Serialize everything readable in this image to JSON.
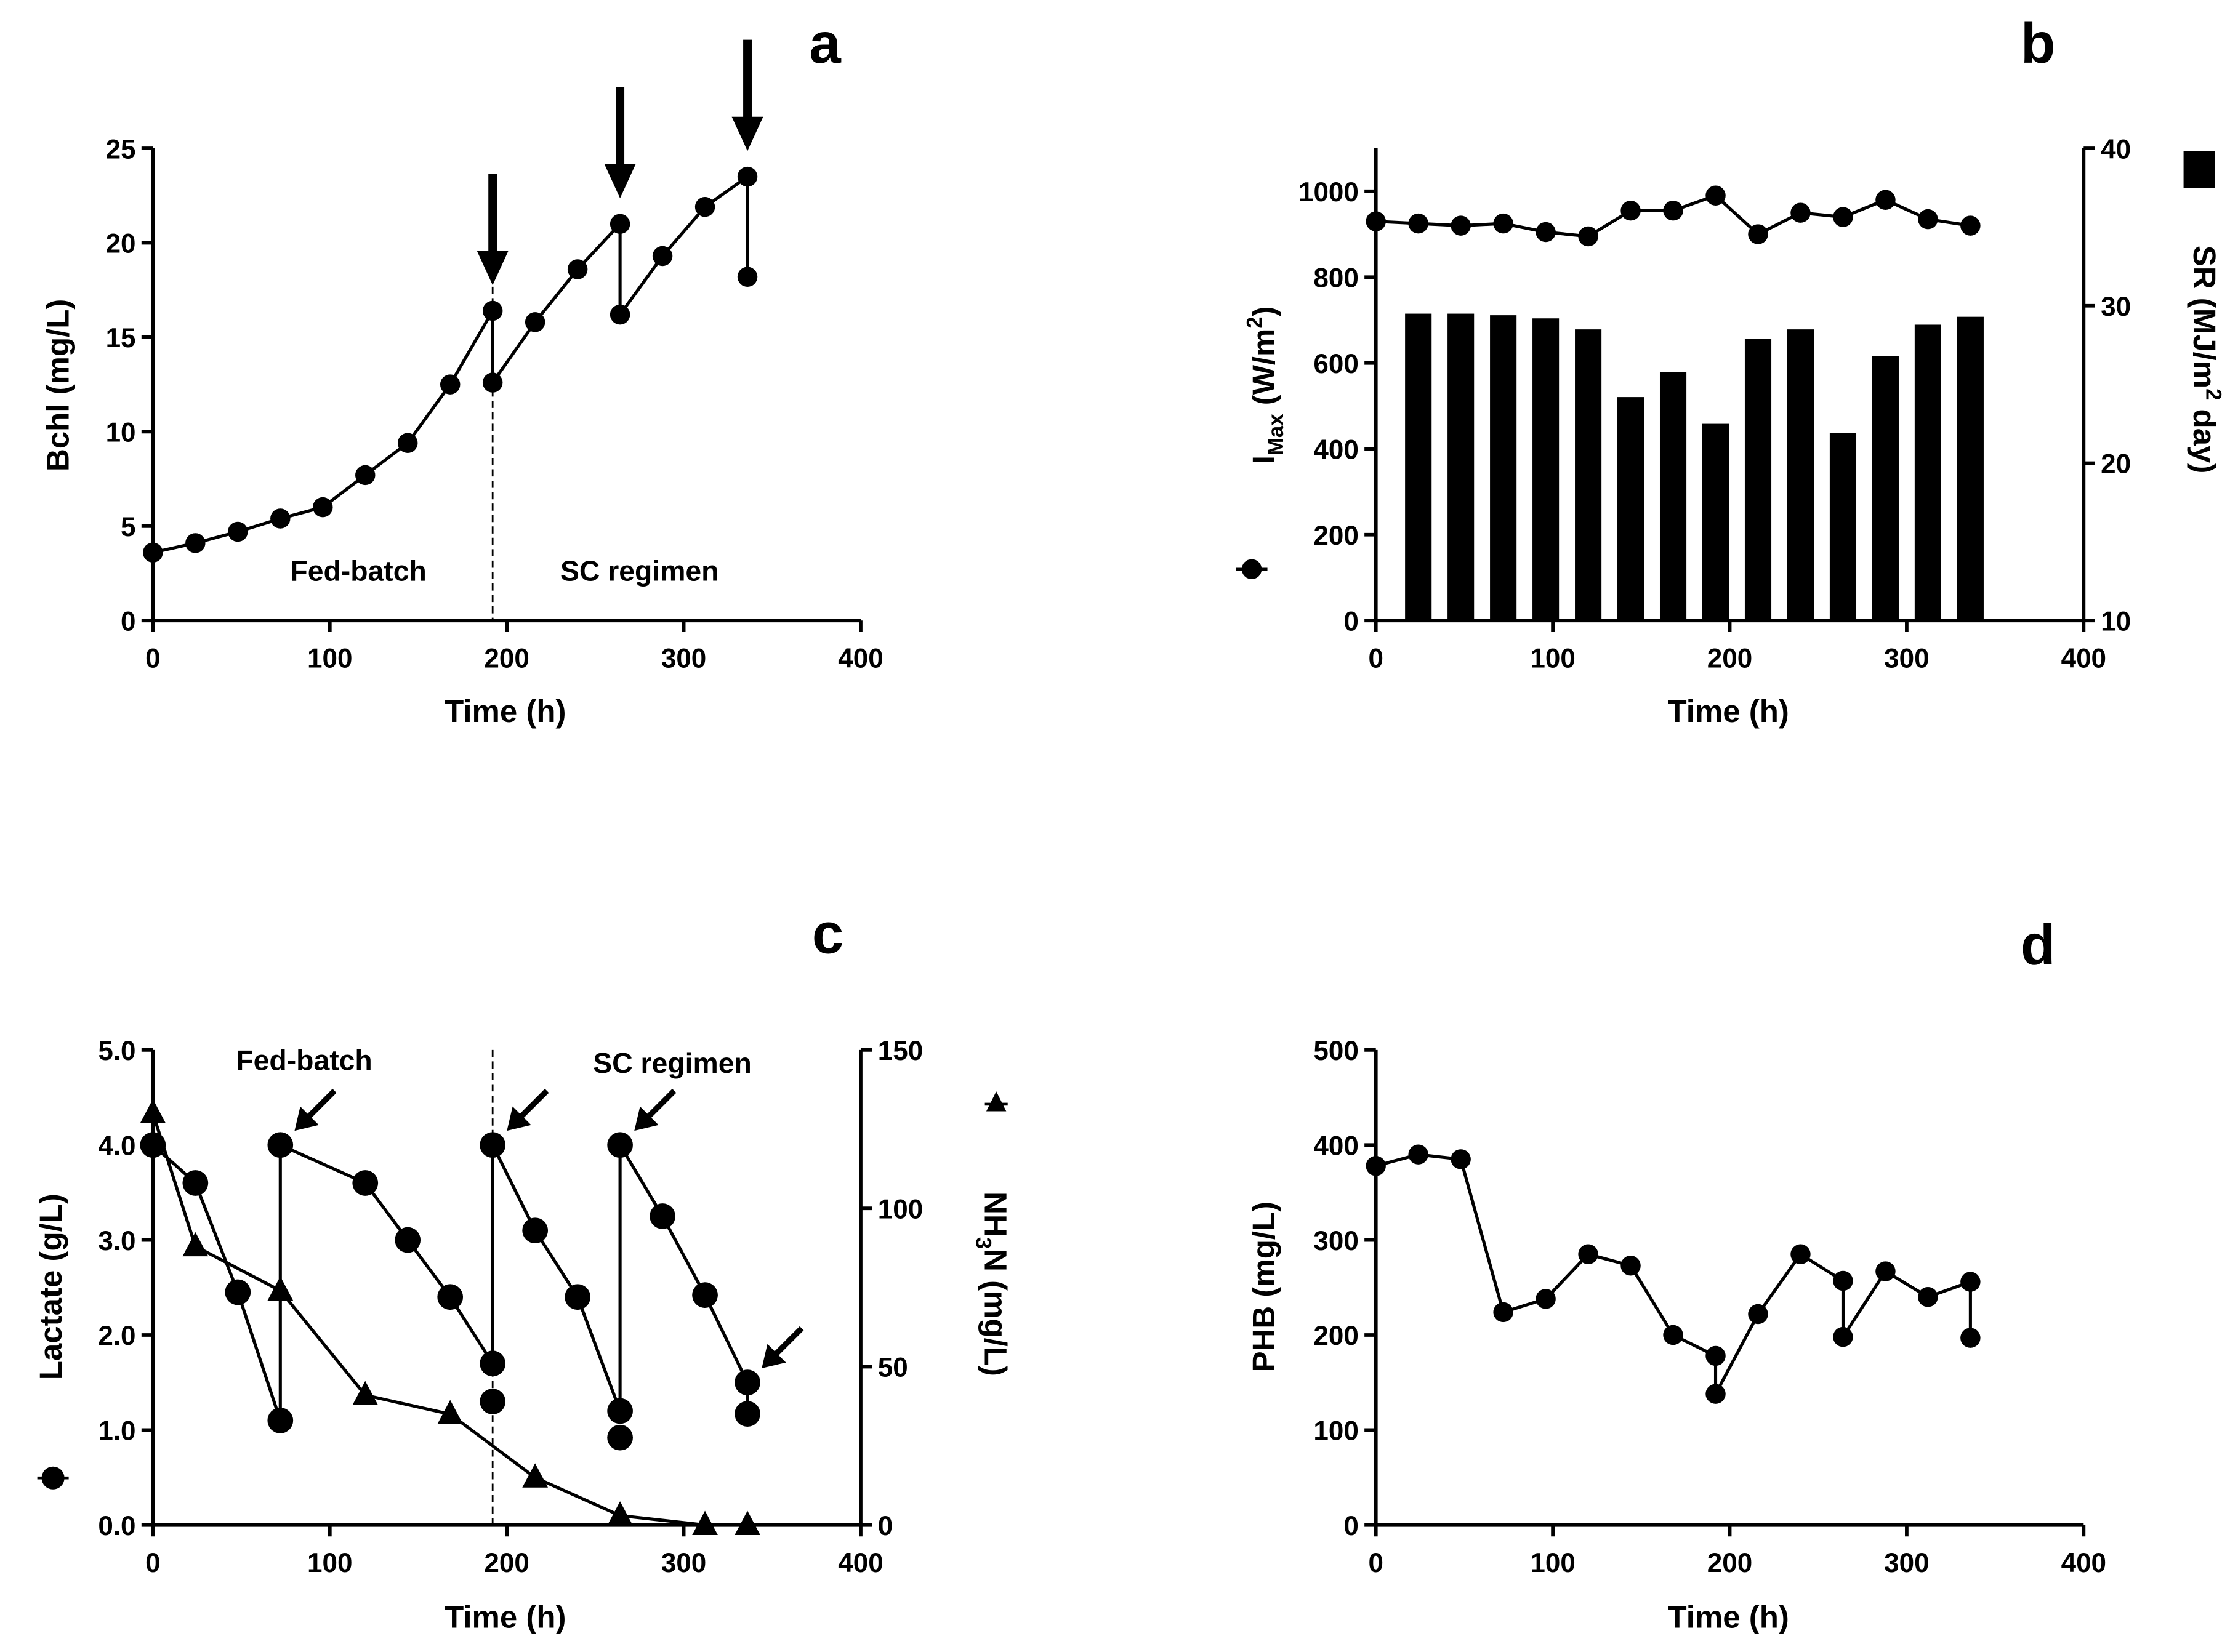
{
  "chart_data": [
    {
      "id": "a",
      "type": "line",
      "panel_label": "a",
      "xlabel": "Time (h)",
      "ylabel": "Bchl (mg/L)",
      "xlim": [
        0,
        400
      ],
      "ylim": [
        0,
        25
      ],
      "xticks": [
        "0",
        "100",
        "200",
        "300",
        "400"
      ],
      "yticks": [
        "0",
        "5",
        "10",
        "15",
        "20",
        "25"
      ],
      "annotations": [
        "Fed-batch",
        "SC regimen"
      ],
      "divider_x": 192,
      "arrows_at": [
        [
          192,
          16.4
        ],
        [
          264,
          21.0
        ],
        [
          336,
          23.5
        ]
      ],
      "series": [
        {
          "name": "Bchl",
          "marker": "circle",
          "line": [
            [
              0,
              3.6
            ],
            [
              24,
              4.1
            ],
            [
              48,
              4.7
            ],
            [
              72,
              5.4
            ],
            [
              96,
              6.0
            ],
            [
              120,
              7.7
            ],
            [
              144,
              9.4
            ],
            [
              168,
              12.5
            ],
            [
              192,
              16.4
            ],
            [
              192,
              12.6
            ],
            [
              216,
              15.8
            ],
            [
              240,
              18.6
            ],
            [
              264,
              21.0
            ],
            [
              264,
              16.2
            ],
            [
              288,
              19.3
            ],
            [
              312,
              21.9
            ],
            [
              336,
              23.5
            ],
            [
              336,
              18.2
            ]
          ],
          "extra": []
        }
      ]
    },
    {
      "id": "b",
      "type": "bar+line",
      "panel_label": "b",
      "xlabel": "Time (h)",
      "ylabel_parts": [
        "I",
        "Max",
        " (W/m",
        "2",
        ")"
      ],
      "y2label_parts": [
        "SR (MJ/m",
        "2",
        " day)"
      ],
      "xlim": [
        0,
        400
      ],
      "ylim": [
        0,
        1100
      ],
      "y2lim": [
        10,
        40
      ],
      "xticks": [
        "0",
        "100",
        "200",
        "300",
        "400"
      ],
      "yticks": [
        "0",
        "200",
        "400",
        "600",
        "800",
        "1000"
      ],
      "y2ticks": [
        "10",
        "20",
        "30",
        "40"
      ],
      "series": [
        {
          "name": "IMax",
          "axis": "left",
          "marker": "circle",
          "line": [
            [
              0,
              930
            ],
            [
              24,
              925
            ],
            [
              48,
              920
            ],
            [
              72,
              925
            ],
            [
              96,
              905
            ],
            [
              120,
              895
            ],
            [
              144,
              955
            ],
            [
              168,
              955
            ],
            [
              192,
              990
            ],
            [
              216,
              900
            ],
            [
              240,
              950
            ],
            [
              264,
              940
            ],
            [
              288,
              980
            ],
            [
              312,
              935
            ],
            [
              336,
              920
            ]
          ],
          "extra": []
        },
        {
          "name": "SR",
          "axis": "right",
          "type": "bar",
          "bars": [
            [
              24,
              29.5
            ],
            [
              48,
              29.5
            ],
            [
              72,
              29.4
            ],
            [
              96,
              29.2
            ],
            [
              120,
              28.5
            ],
            [
              144,
              24.2
            ],
            [
              168,
              25.8
            ],
            [
              192,
              22.5
            ],
            [
              216,
              27.9
            ],
            [
              240,
              28.5
            ],
            [
              264,
              21.9
            ],
            [
              288,
              26.8
            ],
            [
              312,
              28.8
            ],
            [
              336,
              29.3
            ]
          ]
        }
      ]
    },
    {
      "id": "c",
      "type": "line",
      "panel_label": "c",
      "xlabel": "Time (h)",
      "ylabel": "Lactate (g/L)",
      "y2label_parts": [
        "NH",
        "3",
        "N (mg/L)"
      ],
      "xlim": [
        0,
        400
      ],
      "ylim": [
        0,
        5
      ],
      "y2lim": [
        0,
        150
      ],
      "xticks": [
        "0",
        "100",
        "200",
        "300",
        "400"
      ],
      "yticks": [
        "0.0",
        "1.0",
        "2.0",
        "3.0",
        "4.0",
        "5.0"
      ],
      "y2ticks": [
        "0",
        "50",
        "100",
        "150"
      ],
      "annotations": [
        "Fed-batch",
        "SC regimen"
      ],
      "divider_x": 192,
      "arrows_at": [
        [
          72,
          4.0
        ],
        [
          192,
          4.0
        ],
        [
          264,
          4.0
        ],
        [
          336,
          1.5
        ]
      ],
      "series": [
        {
          "name": "Lactate",
          "axis": "left",
          "marker": "circle",
          "line": [
            [
              0,
              4.0
            ],
            [
              24,
              3.6
            ],
            [
              48,
              2.45
            ],
            [
              72,
              1.1
            ],
            [
              72,
              4.0
            ],
            [
              120,
              3.6
            ],
            [
              144,
              3.0
            ],
            [
              168,
              2.4
            ],
            [
              192,
              1.7
            ],
            [
              192,
              4.0
            ],
            [
              216,
              3.1
            ],
            [
              240,
              2.4
            ],
            [
              264,
              1.2
            ],
            [
              264,
              4.0
            ],
            [
              288,
              3.25
            ],
            [
              312,
              2.42
            ],
            [
              336,
              1.5
            ],
            [
              336,
              1.17
            ]
          ],
          "extra": [
            [
              192,
              1.3
            ],
            [
              264,
              0.92
            ]
          ]
        },
        {
          "name": "NH3N",
          "axis": "right",
          "marker": "triangle",
          "line": [
            [
              0,
              130
            ],
            [
              24,
              88
            ],
            [
              72,
              74
            ],
            [
              120,
              41
            ],
            [
              168,
              35
            ],
            [
              216,
              15
            ],
            [
              264,
              3
            ],
            [
              312,
              0
            ],
            [
              336,
              0
            ]
          ],
          "extra": []
        }
      ]
    },
    {
      "id": "d",
      "type": "line",
      "panel_label": "d",
      "xlabel": "Time (h)",
      "ylabel": "PHB (mg/L)",
      "xlim": [
        0,
        400
      ],
      "ylim": [
        0,
        500
      ],
      "xticks": [
        "0",
        "100",
        "200",
        "300",
        "400"
      ],
      "yticks": [
        "0",
        "100",
        "200",
        "300",
        "400",
        "500"
      ],
      "series": [
        {
          "name": "PHB",
          "marker": "circle",
          "line": [
            [
              0,
              378
            ],
            [
              24,
              390
            ],
            [
              48,
              385
            ],
            [
              72,
              224
            ],
            [
              96,
              238
            ],
            [
              120,
              285
            ],
            [
              144,
              273
            ],
            [
              168,
              200
            ],
            [
              192,
              178
            ],
            [
              192,
              138
            ],
            [
              216,
              222
            ],
            [
              240,
              285
            ],
            [
              264,
              257
            ],
            [
              264,
              198
            ],
            [
              288,
              267
            ],
            [
              312,
              240
            ],
            [
              336,
              256
            ],
            [
              336,
              197
            ]
          ],
          "extra": []
        }
      ]
    }
  ]
}
